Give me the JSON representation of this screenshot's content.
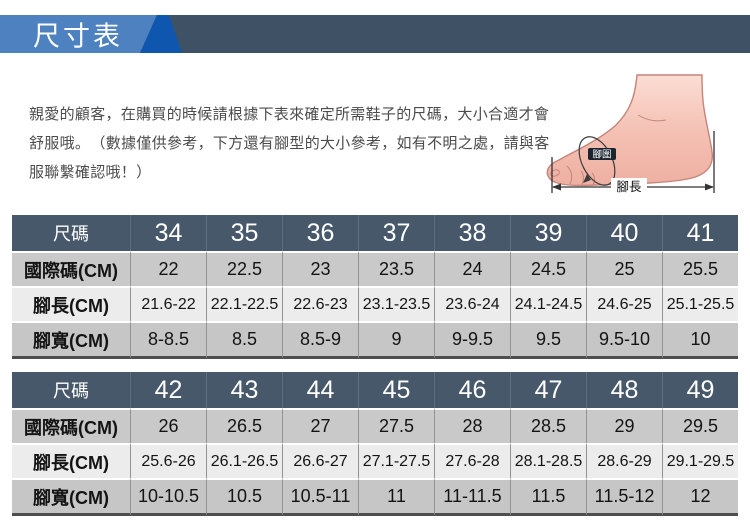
{
  "header": {
    "title": "尺寸表"
  },
  "intro": {
    "text": "親愛的顧客，在購買的時候請根據下表來確定所需鞋子的尺碼，大小合適才會舒服哦。　（數據僅供參考，下方還有腳型的大小參考，如有不明之處，請與客服聯繫確認哦！）"
  },
  "foot_diagram": {
    "girth_label": "腳圍",
    "length_label": "腳長"
  },
  "size_tables": [
    {
      "rows": [
        {
          "label": "尺碼",
          "values": [
            "34",
            "35",
            "36",
            "37",
            "38",
            "39",
            "40",
            "41"
          ]
        },
        {
          "label": "國際碼(CM)",
          "values": [
            "22",
            "22.5",
            "23",
            "23.5",
            "24",
            "24.5",
            "25",
            "25.5"
          ]
        },
        {
          "label": "腳長(CM)",
          "values": [
            "21.6-22",
            "22.1-22.5",
            "22.6-23",
            "23.1-23.5",
            "23.6-24",
            "24.1-24.5",
            "24.6-25",
            "25.1-25.5"
          ]
        },
        {
          "label": "腳寬(CM)",
          "values": [
            "8-8.5",
            "8.5",
            "8.5-9",
            "9",
            "9-9.5",
            "9.5",
            "9.5-10",
            "10"
          ]
        }
      ]
    },
    {
      "rows": [
        {
          "label": "尺碼",
          "values": [
            "42",
            "43",
            "44",
            "45",
            "46",
            "47",
            "48",
            "49"
          ]
        },
        {
          "label": "國際碼(CM)",
          "values": [
            "26",
            "26.5",
            "27",
            "27.5",
            "28",
            "28.5",
            "29",
            "29.5"
          ]
        },
        {
          "label": "腳長(CM)",
          "values": [
            "25.6-26",
            "26.1-26.5",
            "26.6-27",
            "27.1-27.5",
            "27.6-28",
            "28.1-28.5",
            "28.6-29",
            "29.1-29.5"
          ]
        },
        {
          "label": "腳寬(CM)",
          "values": [
            "10-10.5",
            "10.5",
            "10.5-11",
            "11",
            "11-11.5",
            "11.5",
            "11.5-12",
            "12"
          ]
        }
      ]
    }
  ],
  "colors": {
    "banner_light_blue": "#4d81bf",
    "banner_accent_blue": "#0f57ae",
    "banner_slate": "#3f5164",
    "table_header_slate": "#46586a",
    "row_gray": "#c9c9c9",
    "row_light": "#ececec",
    "skin_tone": "#f4bfb2"
  }
}
